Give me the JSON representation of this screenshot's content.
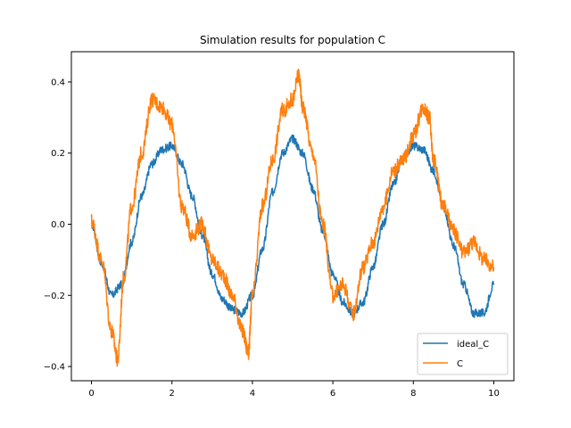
{
  "chart_data": {
    "type": "line",
    "title": "Simulation results for population C",
    "xlabel": "",
    "ylabel": "",
    "xlim": [
      -0.5,
      10.5
    ],
    "ylim": [
      -0.44,
      0.485
    ],
    "xticks": [
      0,
      2,
      4,
      6,
      8,
      10
    ],
    "xtick_labels": [
      "0",
      "2",
      "4",
      "6",
      "8",
      "10"
    ],
    "yticks": [
      -0.4,
      -0.2,
      0.0,
      0.2,
      0.4
    ],
    "ytick_labels": [
      "−0.4",
      "−0.2",
      "0.0",
      "0.2",
      "0.4"
    ],
    "grid": false,
    "legend_position": "lower-right",
    "series": [
      {
        "name": "ideal_C",
        "color": "#1f77b4",
        "x": [
          0,
          0.25,
          0.5,
          0.75,
          1.0,
          1.25,
          1.5,
          1.75,
          2.0,
          2.25,
          2.5,
          2.75,
          3.0,
          3.25,
          3.5,
          3.75,
          4.0,
          4.25,
          4.5,
          4.75,
          5.0,
          5.25,
          5.5,
          5.75,
          6.0,
          6.25,
          6.5,
          6.75,
          7.0,
          7.25,
          7.5,
          7.75,
          8.0,
          8.25,
          8.5,
          8.75,
          9.0,
          9.25,
          9.5,
          9.75,
          10.0
        ],
        "y": [
          0.0,
          -0.11,
          -0.2,
          -0.17,
          -0.05,
          0.08,
          0.17,
          0.21,
          0.22,
          0.17,
          0.08,
          -0.03,
          -0.14,
          -0.21,
          -0.24,
          -0.25,
          -0.2,
          -0.07,
          0.09,
          0.2,
          0.24,
          0.2,
          0.1,
          -0.02,
          -0.14,
          -0.22,
          -0.25,
          -0.22,
          -0.12,
          0.0,
          0.11,
          0.19,
          0.22,
          0.21,
          0.15,
          0.05,
          -0.06,
          -0.17,
          -0.25,
          -0.25,
          -0.17
        ]
      },
      {
        "name": "C",
        "color": "#ff7f0e",
        "x": [
          0,
          0.25,
          0.5,
          0.65,
          0.8,
          1.0,
          1.25,
          1.5,
          1.75,
          2.0,
          2.25,
          2.5,
          2.75,
          3.0,
          3.25,
          3.5,
          3.75,
          3.9,
          4.0,
          4.25,
          4.5,
          4.75,
          5.0,
          5.15,
          5.25,
          5.5,
          5.75,
          6.0,
          6.25,
          6.5,
          6.75,
          7.0,
          7.25,
          7.5,
          7.75,
          8.0,
          8.25,
          8.4,
          8.5,
          8.75,
          9.0,
          9.25,
          9.5,
          9.75,
          10.0
        ],
        "y": [
          0.01,
          -0.1,
          -0.3,
          -0.38,
          -0.15,
          0.05,
          0.2,
          0.35,
          0.33,
          0.28,
          0.05,
          -0.03,
          0.0,
          -0.1,
          -0.14,
          -0.2,
          -0.3,
          -0.36,
          -0.2,
          0.05,
          0.18,
          0.32,
          0.35,
          0.42,
          0.33,
          0.2,
          0.0,
          -0.2,
          -0.17,
          -0.25,
          -0.12,
          -0.05,
          0.05,
          0.15,
          0.18,
          0.25,
          0.33,
          0.3,
          0.18,
          0.05,
          -0.02,
          -0.08,
          -0.05,
          -0.1,
          -0.12
        ]
      }
    ]
  }
}
